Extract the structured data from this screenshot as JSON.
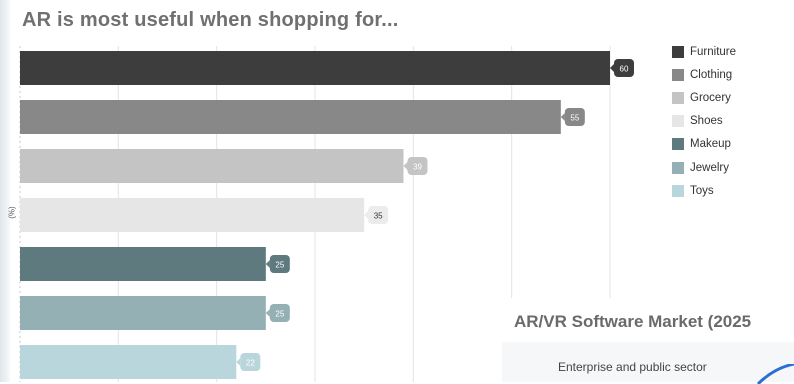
{
  "chart_data": {
    "type": "bar",
    "orientation": "horizontal",
    "title": "AR is most useful when shopping for...",
    "ylabel": "(%)",
    "categories": [
      "Furniture",
      "Clothing",
      "Grocery",
      "Shoes",
      "Makeup",
      "Jewelry",
      "Toys"
    ],
    "values": [
      60,
      55,
      39,
      35,
      25,
      25,
      22
    ],
    "colors": [
      "#3d3d3d",
      "#888888",
      "#c4c4c4",
      "#e6e6e6",
      "#5e7a7f",
      "#94b0b5",
      "#b9d6dc"
    ],
    "xlim": [
      0,
      60
    ],
    "grid": true,
    "legend": "right"
  },
  "second_chart": {
    "title": "AR/VR Software Market (2025",
    "label": "Enterprise and public sector"
  }
}
